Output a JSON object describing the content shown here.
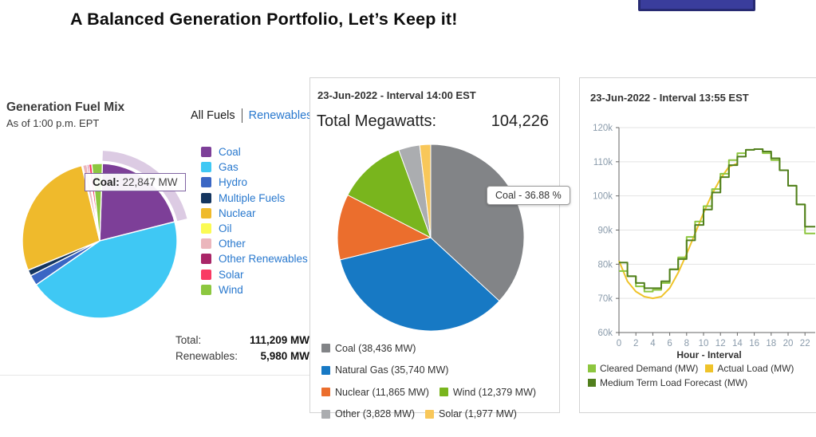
{
  "page": {
    "title": "A Balanced Generation Portfolio, Let’s Keep it!"
  },
  "accent_colors": {
    "link_blue": "#2878CE",
    "panel_border": "#d4d4d4",
    "top_button_navy": "#3A3D9C"
  },
  "left_panel": {
    "title": "Generation Fuel Mix",
    "subtitle": "As of 1:00 p.m. EPT",
    "tabs": [
      {
        "label": "All Fuels",
        "active": true
      },
      {
        "label": "Renewables",
        "active": false
      }
    ],
    "tooltip": {
      "label": "Coal:",
      "value": "22,847 MW"
    },
    "totals": [
      {
        "label": "Total:",
        "value": "111,209 MW"
      },
      {
        "label": "Renewables:",
        "value": "5,980 MW"
      }
    ]
  },
  "middle_panel": {
    "header": "23-Jun-2022 - Interval 14:00 EST",
    "total_label": "Total Megawatts:",
    "total_value": "104,226",
    "tooltip": "Coal - 36.88 %"
  },
  "right_panel": {
    "header": "23-Jun-2022 - Interval 13:55 EST"
  },
  "chart_data": [
    {
      "type": "pie",
      "name": "generation-fuel-mix",
      "title": "Generation Fuel Mix",
      "subtitle": "As of 1:00 p.m. EPT",
      "total_mw": "111,209",
      "renewables_mw": "5,980",
      "highlight": "Coal",
      "highlight_value_mw": "22,847",
      "start_angle_deg": 2,
      "slices": [
        {
          "label": "Coal",
          "percent": 20.5,
          "color": "#7D3F98"
        },
        {
          "label": "Gas",
          "percent": 44.4,
          "color": "#3FC8F4"
        },
        {
          "label": "Hydro",
          "percent": 2.2,
          "color": "#3A66C4"
        },
        {
          "label": "Multiple Fuels",
          "percent": 1.25,
          "color": "#14355F"
        },
        {
          "label": "Nuclear",
          "percent": 27.5,
          "color": "#EFBA2C"
        },
        {
          "label": "Oil",
          "percent": 0.2,
          "color": "#FBFB54"
        },
        {
          "label": "Other",
          "percent": 0.9,
          "color": "#EBB6BC"
        },
        {
          "label": "Other Renewables",
          "percent": 0.35,
          "color": "#A92567"
        },
        {
          "label": "Solar",
          "percent": 0.65,
          "color": "#F93A63"
        },
        {
          "label": "Wind",
          "percent": 2.2,
          "color": "#8CC73F"
        }
      ]
    },
    {
      "type": "pie",
      "name": "interval-fuel-mix",
      "title": "23-Jun-2022 - Interval 14:00 EST",
      "total_megawatts": 104226,
      "tooltip": "Coal - 36.88 %",
      "start_angle_deg": 0,
      "slices": [
        {
          "label": "Coal",
          "value": 38436,
          "color": "#828487",
          "legend": "Coal (38,436 MW)"
        },
        {
          "label": "Natural Gas",
          "value": 35740,
          "color": "#1779C4",
          "legend": "Natural Gas (35,740 MW)"
        },
        {
          "label": "Nuclear",
          "value": 11865,
          "color": "#EB6E2D",
          "legend": "Nuclear (11,865 MW)"
        },
        {
          "label": "Wind",
          "value": 12379,
          "color": "#79B51D",
          "legend": "Wind (12,379 MW)"
        },
        {
          "label": "Other",
          "value": 3828,
          "color": "#ABADB0",
          "legend": "Other (3,828 MW)"
        },
        {
          "label": "Solar",
          "value": 1977,
          "color": "#F8C75A",
          "legend": "Solar (1,977 MW)"
        }
      ]
    },
    {
      "type": "line",
      "name": "load-vs-forecast",
      "title": "23-Jun-2022 - Interval 13:55 EST",
      "xlabel": "Hour - Interval",
      "ylim": [
        60000,
        120000
      ],
      "grid": true,
      "legend_position": "bottom",
      "yticks": [
        {
          "v": 120000,
          "label": "120k"
        },
        {
          "v": 110000,
          "label": "110k"
        },
        {
          "v": 100000,
          "label": "100k"
        },
        {
          "v": 90000,
          "label": "90k"
        },
        {
          "v": 80000,
          "label": "80k"
        },
        {
          "v": 70000,
          "label": "70k"
        },
        {
          "v": 60000,
          "label": "60k"
        }
      ],
      "xticks": [
        {
          "v": 0,
          "label": "0"
        },
        {
          "v": 2,
          "label": "2"
        },
        {
          "v": 4,
          "label": "4"
        },
        {
          "v": 6,
          "label": "6"
        },
        {
          "v": 8,
          "label": "8"
        },
        {
          "v": 10,
          "label": "10"
        },
        {
          "v": 12,
          "label": "12"
        },
        {
          "v": 14,
          "label": "14"
        },
        {
          "v": 16,
          "label": "16"
        },
        {
          "v": 18,
          "label": "18"
        },
        {
          "v": 20,
          "label": "20"
        },
        {
          "v": 22,
          "label": "22"
        }
      ],
      "series": [
        {
          "name": "Cleared Demand (MW)",
          "color": "#8DC63F",
          "step": true,
          "z": 1,
          "values": [
            78000,
            76500,
            73500,
            72000,
            72500,
            74500,
            78500,
            82000,
            88000,
            92500,
            97000,
            102000,
            106500,
            110500,
            112500,
            113500,
            113700,
            112500,
            110500,
            107500,
            103000,
            97500,
            89000,
            89000
          ]
        },
        {
          "name": "Actual Load (MW)",
          "color": "#EFC32A",
          "step": false,
          "z": 0,
          "values": [
            81000,
            75000,
            72000,
            70500,
            70000,
            70500,
            73000,
            77500,
            83000,
            89000,
            95000,
            100500,
            105000,
            108500,
            109500
          ]
        },
        {
          "name": "Medium Term Load Forecast (MW)",
          "color": "#517F1D",
          "step": true,
          "z": 2,
          "values": [
            80500,
            76500,
            74500,
            73000,
            73000,
            75000,
            78500,
            81500,
            87000,
            91500,
            96000,
            101000,
            105500,
            109000,
            111500,
            113500,
            113700,
            113000,
            111000,
            107500,
            103000,
            97500,
            91000,
            91000
          ]
        }
      ]
    }
  ]
}
